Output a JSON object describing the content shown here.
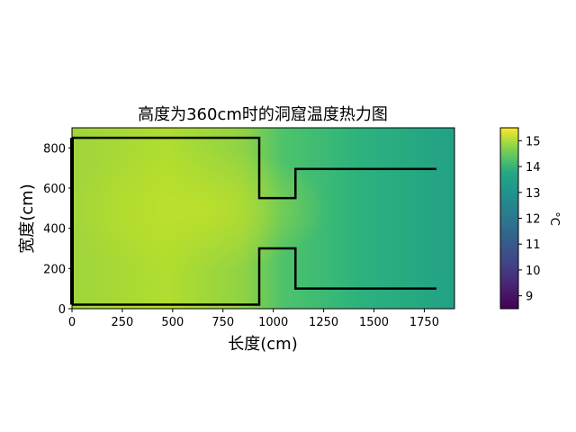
{
  "chart_data": {
    "type": "heatmap",
    "title": "高度为360cm时的洞窟温度热力图",
    "xlabel": "长度(cm)",
    "ylabel": "宽度(cm)",
    "xlim": [
      0,
      1900
    ],
    "ylim": [
      0,
      900
    ],
    "xticks": [
      0,
      250,
      500,
      750,
      1000,
      1250,
      1500,
      1750
    ],
    "yticks": [
      0,
      200,
      400,
      600,
      800
    ],
    "colormap": "viridis",
    "colorbar": {
      "label": "°C",
      "range": [
        8.5,
        15.5
      ],
      "ticks": [
        9,
        10,
        11,
        12,
        13,
        14,
        15
      ]
    },
    "temperature_field": {
      "description_points": [
        {
          "x": 0,
          "y": 450,
          "value": 14.6
        },
        {
          "x": 500,
          "y": 450,
          "value": 14.7
        },
        {
          "x": 900,
          "y": 450,
          "value": 14.3
        },
        {
          "x": 1100,
          "y": 450,
          "value": 13.7
        },
        {
          "x": 1400,
          "y": 450,
          "value": 13.3
        },
        {
          "x": 1900,
          "y": 450,
          "value": 12.8
        }
      ]
    },
    "outline": {
      "color": "#000000",
      "points": [
        [
          0,
          850
        ],
        [
          930,
          850
        ],
        [
          930,
          550
        ],
        [
          1110,
          550
        ],
        [
          1110,
          695
        ],
        [
          1810,
          695
        ]
      ],
      "points_lower": [
        [
          0,
          20
        ],
        [
          930,
          20
        ],
        [
          930,
          300
        ],
        [
          1110,
          300
        ],
        [
          1110,
          100
        ],
        [
          1810,
          100
        ]
      ],
      "left_edge": [
        [
          0,
          20
        ],
        [
          0,
          850
        ]
      ]
    }
  }
}
